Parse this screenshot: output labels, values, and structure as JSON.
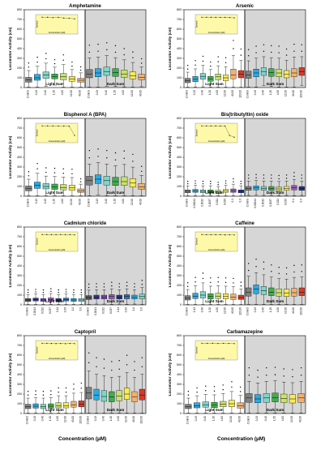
{
  "xaxis_label": "Concentration (µM)",
  "chart_data": [
    {
      "type": "box",
      "title": "Amphetamine",
      "ylabel": "Locomotor Activity (cm)",
      "ylim": [
        0,
        800
      ],
      "yticks": [
        0,
        100,
        200,
        300,
        400,
        500,
        600,
        700,
        800
      ],
      "segments": [
        "Light Sum",
        "Dark Sum"
      ],
      "categories": [
        "Control",
        "0.13",
        "0.40",
        "1.20",
        "4.00",
        "12.00",
        "40.00"
      ],
      "colors": [
        "#808080",
        "#29abe2",
        "#7fd6c8",
        "#3cb04a",
        "#c9e26a",
        "#f7ec54",
        "#f4b06a"
      ],
      "light": [
        {
          "med": 80,
          "q1": 55,
          "q3": 105
        },
        {
          "med": 100,
          "q1": 75,
          "q3": 135
        },
        {
          "med": 130,
          "q1": 95,
          "q3": 160
        },
        {
          "med": 115,
          "q1": 90,
          "q3": 140
        },
        {
          "med": 110,
          "q1": 80,
          "q3": 145
        },
        {
          "med": 90,
          "q1": 65,
          "q3": 115
        },
        {
          "med": 75,
          "q1": 55,
          "q3": 95
        }
      ],
      "dark": [
        {
          "med": 140,
          "q1": 100,
          "q3": 185
        },
        {
          "med": 150,
          "q1": 110,
          "q3": 195
        },
        {
          "med": 165,
          "q1": 125,
          "q3": 210
        },
        {
          "med": 155,
          "q1": 115,
          "q3": 195
        },
        {
          "med": 140,
          "q1": 105,
          "q3": 180
        },
        {
          "med": 120,
          "q1": 90,
          "q3": 160
        },
        {
          "med": 105,
          "q1": 80,
          "q3": 135
        }
      ],
      "inset": {
        "xlabel": "Concentration (µM)",
        "ylabel": "Survival",
        "points": [
          0.98,
          0.98,
          0.95,
          0.97,
          0.92,
          0.9,
          0.85
        ]
      }
    },
    {
      "type": "box",
      "title": "Arsenic",
      "ylabel": "Locomotor Activity (cm)",
      "ylim": [
        0,
        800
      ],
      "yticks": [
        0,
        100,
        200,
        300,
        400,
        500,
        600,
        700,
        800
      ],
      "segments": [
        "Light Sum",
        "Dark Sum"
      ],
      "categories": [
        "Control",
        "0.13",
        "0.40",
        "1.20",
        "4.00",
        "12.00",
        "40.00",
        "120.00"
      ],
      "colors": [
        "#808080",
        "#29abe2",
        "#7fd6c8",
        "#3cb04a",
        "#c9e26a",
        "#f7ec54",
        "#f4b06a",
        "#d83a2a"
      ],
      "light": [
        {
          "med": 70,
          "q1": 50,
          "q3": 95
        },
        {
          "med": 85,
          "q1": 60,
          "q3": 115
        },
        {
          "med": 115,
          "q1": 85,
          "q3": 145
        },
        {
          "med": 90,
          "q1": 65,
          "q3": 115
        },
        {
          "med": 110,
          "q1": 80,
          "q3": 140
        },
        {
          "med": 100,
          "q1": 70,
          "q3": 130
        },
        {
          "med": 130,
          "q1": 90,
          "q3": 190
        },
        {
          "med": 140,
          "q1": 100,
          "q3": 175
        }
      ],
      "dark": [
        {
          "med": 130,
          "q1": 95,
          "q3": 170
        },
        {
          "med": 150,
          "q1": 110,
          "q3": 190
        },
        {
          "med": 165,
          "q1": 125,
          "q3": 205
        },
        {
          "med": 155,
          "q1": 115,
          "q3": 195
        },
        {
          "med": 150,
          "q1": 110,
          "q3": 190
        },
        {
          "med": 135,
          "q1": 100,
          "q3": 175
        },
        {
          "med": 150,
          "q1": 110,
          "q3": 195
        },
        {
          "med": 165,
          "q1": 125,
          "q3": 205
        }
      ],
      "inset": {
        "xlabel": "Concentration (µM)",
        "ylabel": "Survival",
        "points": [
          0.98,
          0.98,
          0.98,
          0.97,
          0.97,
          0.97,
          0.96,
          0.93
        ]
      }
    },
    {
      "type": "box",
      "title": "Bisphenol A (BPA)",
      "ylabel": "Locomotor Activity (cm)",
      "ylim": [
        0,
        800
      ],
      "yticks": [
        0,
        100,
        200,
        300,
        400,
        500,
        600,
        700,
        800
      ],
      "segments": [
        "Light Sum",
        "Dark Sum"
      ],
      "categories": [
        "Control",
        "0.13",
        "0.40",
        "1.20",
        "4.00",
        "12.00",
        "40.00"
      ],
      "colors": [
        "#808080",
        "#29abe2",
        "#7fd6c8",
        "#3cb04a",
        "#c9e26a",
        "#f7ec54",
        "#f4b06a"
      ],
      "light": [
        {
          "med": 80,
          "q1": 55,
          "q3": 105
        },
        {
          "med": 110,
          "q1": 80,
          "q3": 145
        },
        {
          "med": 100,
          "q1": 75,
          "q3": 130
        },
        {
          "med": 95,
          "q1": 70,
          "q3": 125
        },
        {
          "med": 90,
          "q1": 65,
          "q3": 120
        },
        {
          "med": 85,
          "q1": 60,
          "q3": 115
        },
        {
          "med": 55,
          "q1": 40,
          "q3": 75
        }
      ],
      "dark": [
        {
          "med": 160,
          "q1": 115,
          "q3": 205
        },
        {
          "med": 175,
          "q1": 130,
          "q3": 220
        },
        {
          "med": 160,
          "q1": 115,
          "q3": 205
        },
        {
          "med": 150,
          "q1": 110,
          "q3": 195
        },
        {
          "med": 150,
          "q1": 110,
          "q3": 200
        },
        {
          "med": 135,
          "q1": 95,
          "q3": 180
        },
        {
          "med": 95,
          "q1": 70,
          "q3": 130
        }
      ],
      "inset": {
        "xlabel": "Concentration (µM)",
        "ylabel": "Survival",
        "points": [
          0.98,
          0.98,
          0.98,
          0.97,
          0.97,
          0.96,
          0.2
        ]
      }
    },
    {
      "type": "box",
      "title": "Bis(tributyltin) oxide",
      "ylabel": "Locomotor Activity (cm)",
      "ylim": [
        0,
        800
      ],
      "yticks": [
        0,
        100,
        200,
        300,
        400,
        500,
        600,
        700,
        800
      ],
      "segments": [
        "Light Sum",
        "Dark Sum"
      ],
      "categories": [
        "Control",
        "0.00041",
        "0.0012",
        "0.0037",
        "0.011",
        "0.033",
        "0.1",
        "0.3"
      ],
      "colors": [
        "#808080",
        "#29abe2",
        "#7fd6c8",
        "#3cb04a",
        "#c9e26a",
        "#f7ec54",
        "#9b59b6",
        "#1f3a93"
      ],
      "light": [
        {
          "med": 50,
          "q1": 35,
          "q3": 65
        },
        {
          "med": 55,
          "q1": 40,
          "q3": 70
        },
        {
          "med": 50,
          "q1": 35,
          "q3": 65
        },
        {
          "med": 50,
          "q1": 35,
          "q3": 65
        },
        {
          "med": 45,
          "q1": 32,
          "q3": 60
        },
        {
          "med": 55,
          "q1": 40,
          "q3": 70
        },
        {
          "med": 55,
          "q1": 40,
          "q3": 75
        },
        {
          "med": 50,
          "q1": 35,
          "q3": 65
        }
      ],
      "dark": [
        {
          "med": 80,
          "q1": 60,
          "q3": 100
        },
        {
          "med": 85,
          "q1": 65,
          "q3": 105
        },
        {
          "med": 80,
          "q1": 60,
          "q3": 100
        },
        {
          "med": 80,
          "q1": 60,
          "q3": 100
        },
        {
          "med": 75,
          "q1": 55,
          "q3": 95
        },
        {
          "med": 80,
          "q1": 60,
          "q3": 100
        },
        {
          "med": 90,
          "q1": 65,
          "q3": 110
        },
        {
          "med": 80,
          "q1": 60,
          "q3": 100
        }
      ],
      "inset": {
        "xlabel": "Concentration (µM)",
        "ylabel": "Survival",
        "points": [
          0.98,
          0.98,
          0.98,
          0.98,
          0.97,
          0.97,
          0.2,
          0.05
        ]
      }
    },
    {
      "type": "box",
      "title": "Cadmium chloride",
      "ylabel": "Locomotor Activity (cm)",
      "ylim": [
        0,
        800
      ],
      "yticks": [
        0,
        100,
        200,
        300,
        400,
        500,
        600,
        700,
        800
      ],
      "segments": [
        "Light Sum",
        "Dark Sum"
      ],
      "categories": [
        "Control",
        "0.0041",
        "0.012",
        "0.037",
        "0.11",
        "0.33",
        "1.0",
        "3.0"
      ],
      "colors": [
        "#555555",
        "#3a3a8c",
        "#7b4fb8",
        "#9b59b6",
        "#1f3a93",
        "#3c6fb6",
        "#29abe2",
        "#7fd6c8"
      ],
      "light": [
        {
          "med": 50,
          "q1": 35,
          "q3": 65
        },
        {
          "med": 55,
          "q1": 40,
          "q3": 70
        },
        {
          "med": 50,
          "q1": 35,
          "q3": 65
        },
        {
          "med": 55,
          "q1": 40,
          "q3": 72
        },
        {
          "med": 50,
          "q1": 35,
          "q3": 65
        },
        {
          "med": 55,
          "q1": 40,
          "q3": 70
        },
        {
          "med": 50,
          "q1": 35,
          "q3": 65
        },
        {
          "med": 50,
          "q1": 35,
          "q3": 65
        }
      ],
      "dark": [
        {
          "med": 75,
          "q1": 55,
          "q3": 95
        },
        {
          "med": 80,
          "q1": 60,
          "q3": 100
        },
        {
          "med": 80,
          "q1": 60,
          "q3": 100
        },
        {
          "med": 85,
          "q1": 62,
          "q3": 105
        },
        {
          "med": 80,
          "q1": 60,
          "q3": 100
        },
        {
          "med": 85,
          "q1": 62,
          "q3": 105
        },
        {
          "med": 80,
          "q1": 60,
          "q3": 100
        },
        {
          "med": 85,
          "q1": 62,
          "q3": 110
        }
      ],
      "inset": {
        "xlabel": "Concentration (µM)",
        "ylabel": "Survival",
        "points": [
          0.98,
          0.98,
          0.97,
          0.97,
          0.98,
          0.97,
          0.97,
          0.96
        ]
      }
    },
    {
      "type": "box",
      "title": "Caffeine",
      "ylabel": "Locomotor Activity (cm)",
      "ylim": [
        0,
        800
      ],
      "yticks": [
        0,
        100,
        200,
        300,
        400,
        500,
        600,
        700,
        800
      ],
      "segments": [
        "Light Sum",
        "Dark Sum"
      ],
      "categories": [
        "Control",
        "0.13",
        "0.40",
        "1.20",
        "4.00",
        "12.00",
        "40.00",
        "120.00"
      ],
      "colors": [
        "#808080",
        "#29abe2",
        "#7fd6c8",
        "#3cb04a",
        "#c9e26a",
        "#f7ec54",
        "#f4b06a",
        "#d83a2a"
      ],
      "light": [
        {
          "med": 70,
          "q1": 50,
          "q3": 95
        },
        {
          "med": 90,
          "q1": 65,
          "q3": 120
        },
        {
          "med": 100,
          "q1": 70,
          "q3": 135
        },
        {
          "med": 85,
          "q1": 60,
          "q3": 115
        },
        {
          "med": 90,
          "q1": 65,
          "q3": 120
        },
        {
          "med": 85,
          "q1": 60,
          "q3": 115
        },
        {
          "med": 80,
          "q1": 55,
          "q3": 110
        },
        {
          "med": 75,
          "q1": 55,
          "q3": 100
        }
      ],
      "dark": [
        {
          "med": 130,
          "q1": 90,
          "q3": 175
        },
        {
          "med": 160,
          "q1": 115,
          "q3": 205
        },
        {
          "med": 145,
          "q1": 105,
          "q3": 190
        },
        {
          "med": 130,
          "q1": 95,
          "q3": 175
        },
        {
          "med": 125,
          "q1": 90,
          "q3": 165
        },
        {
          "med": 120,
          "q1": 85,
          "q3": 160
        },
        {
          "med": 125,
          "q1": 90,
          "q3": 170
        },
        {
          "med": 130,
          "q1": 95,
          "q3": 175
        }
      ],
      "inset": {
        "xlabel": "Concentration (µM)",
        "ylabel": "Survival",
        "points": [
          0.98,
          0.97,
          0.97,
          0.97,
          0.97,
          0.96,
          0.96,
          0.95
        ]
      }
    },
    {
      "type": "box",
      "title": "Captopril",
      "ylabel": "Locomotor Activity (cm)",
      "ylim": [
        0,
        800
      ],
      "yticks": [
        0,
        100,
        200,
        300,
        400,
        500,
        600,
        700,
        800
      ],
      "segments": [
        "Light Sum",
        "Dark Sum"
      ],
      "categories": [
        "Control",
        "0.13",
        "0.40",
        "1.20",
        "4.00",
        "12.00",
        "40.00",
        "120.00"
      ],
      "colors": [
        "#808080",
        "#29abe2",
        "#7fd6c8",
        "#3cb04a",
        "#c9e26a",
        "#f7ec54",
        "#f4b06a",
        "#d83a2a"
      ],
      "light": [
        {
          "med": 70,
          "q1": 50,
          "q3": 95
        },
        {
          "med": 75,
          "q1": 55,
          "q3": 100
        },
        {
          "med": 70,
          "q1": 50,
          "q3": 95
        },
        {
          "med": 75,
          "q1": 55,
          "q3": 100
        },
        {
          "med": 80,
          "q1": 58,
          "q3": 110
        },
        {
          "med": 80,
          "q1": 58,
          "q3": 110
        },
        {
          "med": 90,
          "q1": 65,
          "q3": 125
        },
        {
          "med": 95,
          "q1": 68,
          "q3": 130
        }
      ],
      "dark": [
        {
          "med": 210,
          "q1": 150,
          "q3": 270
        },
        {
          "med": 190,
          "q1": 140,
          "q3": 250
        },
        {
          "med": 175,
          "q1": 125,
          "q3": 235
        },
        {
          "med": 170,
          "q1": 120,
          "q3": 225
        },
        {
          "med": 180,
          "q1": 130,
          "q3": 235
        },
        {
          "med": 200,
          "q1": 145,
          "q3": 260
        },
        {
          "med": 170,
          "q1": 120,
          "q3": 225
        },
        {
          "med": 190,
          "q1": 140,
          "q3": 250
        }
      ],
      "inset": {
        "xlabel": "Concentration (µM)",
        "ylabel": "Survival",
        "points": [
          0.97,
          0.97,
          0.96,
          0.95,
          0.96,
          0.94,
          0.96,
          0.95
        ]
      }
    },
    {
      "type": "box",
      "title": "Carbamazepine",
      "ylabel": "Locomotor Activity (cm)",
      "ylim": [
        0,
        800
      ],
      "yticks": [
        0,
        100,
        200,
        300,
        400,
        500,
        600,
        700,
        800
      ],
      "segments": [
        "Light Sum",
        "Dark Sum"
      ],
      "categories": [
        "Control",
        "0.13",
        "0.40",
        "1.20",
        "4.00",
        "12.00",
        "40.00"
      ],
      "colors": [
        "#808080",
        "#29abe2",
        "#7fd6c8",
        "#3cb04a",
        "#c9e26a",
        "#f7ec54",
        "#f4b06a"
      ],
      "light": [
        {
          "med": 70,
          "q1": 50,
          "q3": 95
        },
        {
          "med": 80,
          "q1": 58,
          "q3": 110
        },
        {
          "med": 90,
          "q1": 65,
          "q3": 120
        },
        {
          "med": 85,
          "q1": 60,
          "q3": 115
        },
        {
          "med": 95,
          "q1": 68,
          "q3": 125
        },
        {
          "med": 100,
          "q1": 70,
          "q3": 135
        },
        {
          "med": 80,
          "q1": 55,
          "q3": 110
        }
      ],
      "dark": [
        {
          "med": 160,
          "q1": 115,
          "q3": 205
        },
        {
          "med": 150,
          "q1": 110,
          "q3": 195
        },
        {
          "med": 160,
          "q1": 115,
          "q3": 205
        },
        {
          "med": 165,
          "q1": 120,
          "q3": 210
        },
        {
          "med": 155,
          "q1": 112,
          "q3": 200
        },
        {
          "med": 150,
          "q1": 108,
          "q3": 195
        },
        {
          "med": 160,
          "q1": 115,
          "q3": 205
        }
      ],
      "inset": {
        "xlabel": "Concentration (µM)",
        "ylabel": "Survival",
        "points": [
          0.97,
          0.97,
          0.97,
          0.96,
          0.97,
          0.96,
          0.95
        ]
      }
    }
  ]
}
